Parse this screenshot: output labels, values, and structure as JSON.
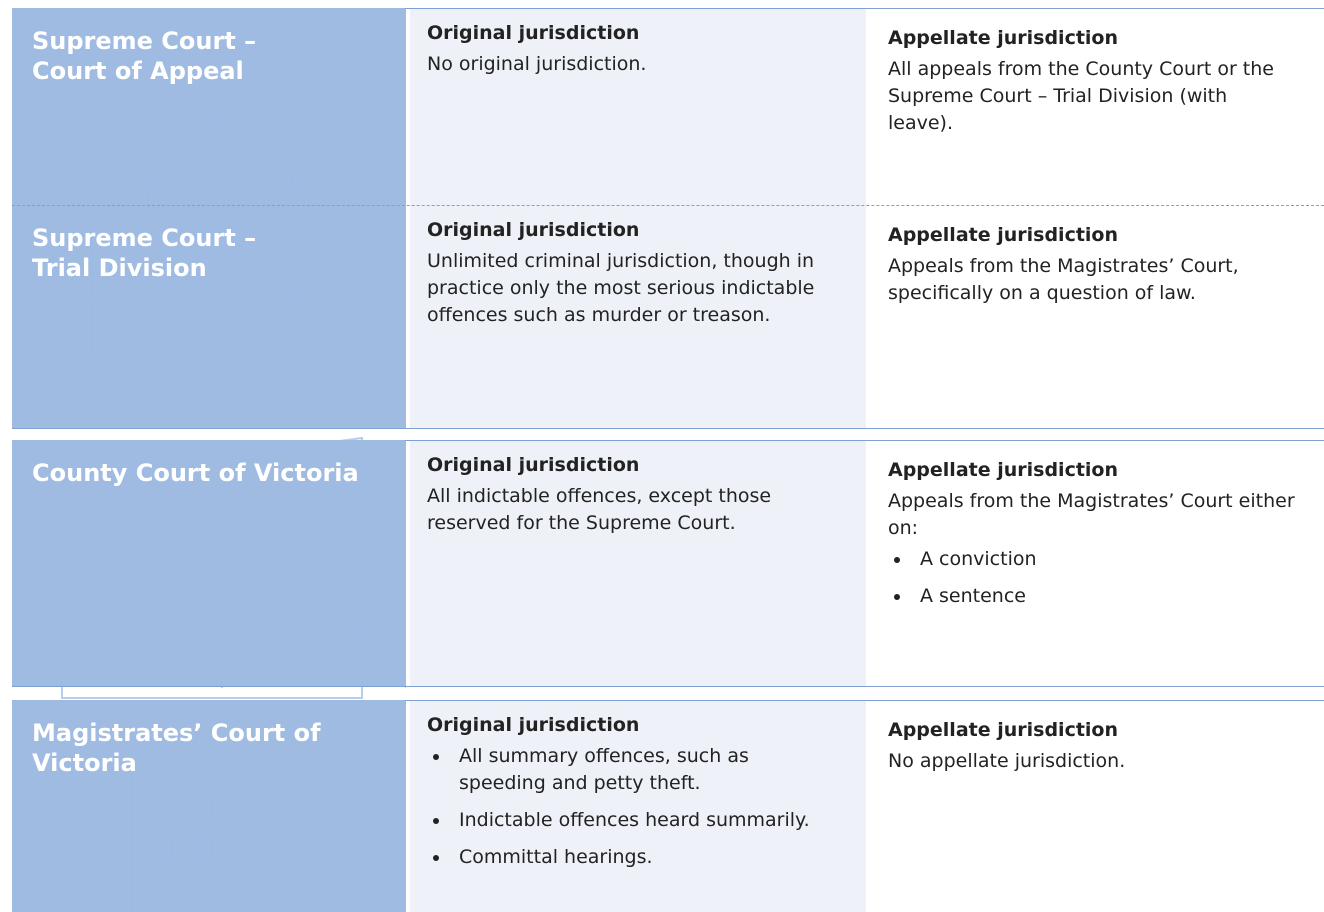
{
  "rows": [
    {
      "court": [
        "Supreme Court –",
        "Court of Appeal"
      ],
      "original": {
        "heading": "Original jurisdiction",
        "text": "No original jurisdiction."
      },
      "appellate": {
        "heading": "Appellate jurisdiction",
        "text": "All appeals from the County Court or the Supreme Court – Trial Division (with leave)."
      }
    },
    {
      "court": [
        "Supreme Court –",
        "Trial Division"
      ],
      "original": {
        "heading": "Original jurisdiction",
        "text": "Unlimited criminal jurisdiction, though in practice only the most serious indictable offences such as murder or treason."
      },
      "appellate": {
        "heading": "Appellate jurisdiction",
        "text": "Appeals from the Magistrates’ Court, specifically on a question of law."
      }
    },
    {
      "court": [
        "County Court of Victoria"
      ],
      "original": {
        "heading": "Original jurisdiction",
        "text": "All indictable offences, except those reserved for the Supreme Court."
      },
      "appellate": {
        "heading": "Appellate jurisdiction",
        "text": "Appeals from the Magistrates’ Court either on:",
        "items": [
          "A conviction",
          "A sentence"
        ]
      }
    },
    {
      "court": [
        "Magistrates’ Court of",
        "Victoria"
      ],
      "original": {
        "heading": "Original jurisdiction",
        "items": [
          "All summary offences, such as speeding and petty theft.",
          "Indictable offences heard summarily.",
          "Committal hearings."
        ]
      },
      "appellate": {
        "heading": "Appellate jurisdiction",
        "text": "No appellate jurisdiction."
      }
    }
  ]
}
